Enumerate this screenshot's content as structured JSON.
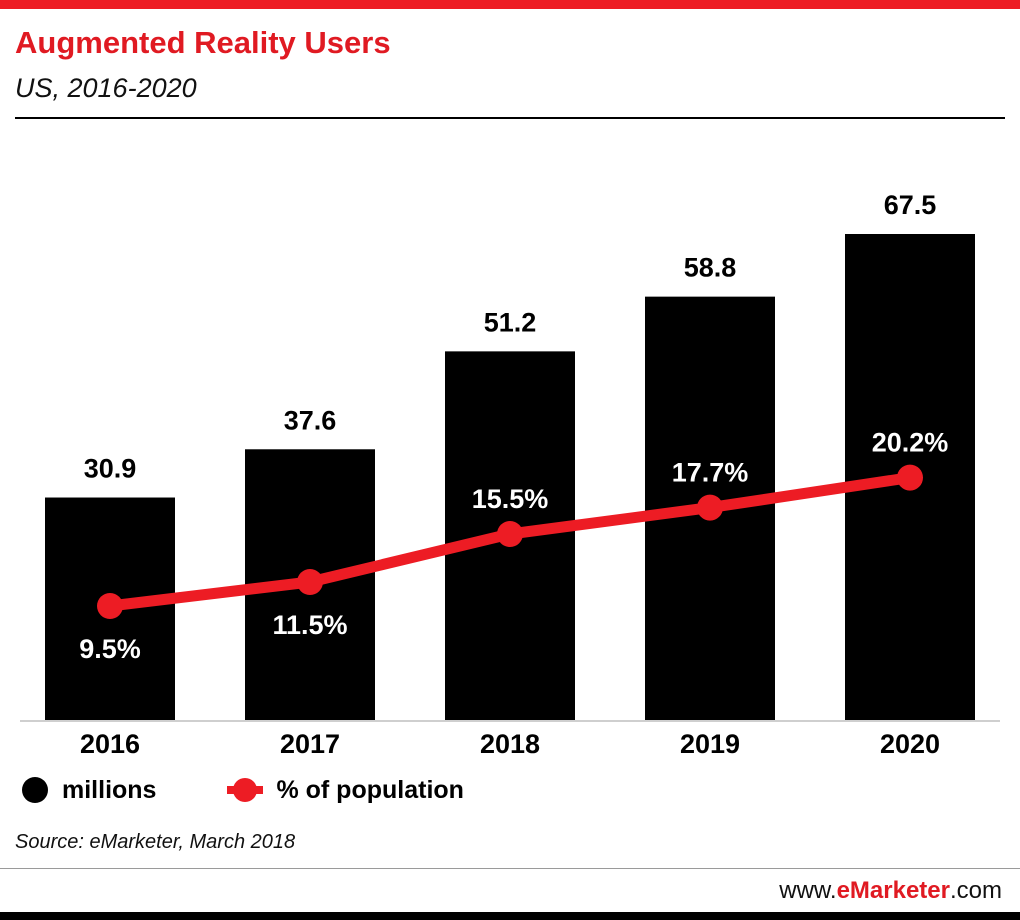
{
  "page": {
    "accent_red": "#ed1c24",
    "bar_black": "#000000"
  },
  "header": {
    "title": "Augmented Reality Users",
    "subtitle": "US, 2016-2020"
  },
  "chart_data": {
    "type": "bar",
    "title": "Augmented Reality Users",
    "subtitle": "US, 2016-2020",
    "categories": [
      "2016",
      "2017",
      "2018",
      "2019",
      "2020"
    ],
    "series": [
      {
        "name": "millions",
        "type": "bar",
        "color": "#000000",
        "values": [
          30.9,
          37.6,
          51.2,
          58.8,
          67.5
        ],
        "labels": [
          "30.9",
          "37.6",
          "51.2",
          "58.8",
          "67.5"
        ]
      },
      {
        "name": "% of population",
        "type": "line",
        "color": "#ed1c24",
        "values": [
          9.5,
          11.5,
          15.5,
          17.7,
          20.2
        ],
        "labels": [
          "9.5%",
          "11.5%",
          "15.5%",
          "17.7%",
          "20.2%"
        ],
        "label_positions": [
          "below",
          "below",
          "above",
          "above",
          "above"
        ]
      }
    ],
    "bar_axis": {
      "min": 0,
      "max": 75
    },
    "line_axis": {
      "min": 0,
      "max": 25
    },
    "grid": false,
    "legend_position": "bottom"
  },
  "legend": {
    "items": [
      {
        "label": "millions",
        "color": "#000000",
        "marker": "circle"
      },
      {
        "label": "% of population",
        "color": "#ed1c24",
        "marker": "line-dot"
      }
    ]
  },
  "source": {
    "text": "Source: eMarketer, March 2018"
  },
  "footer": {
    "prefix": "www.",
    "brand": "eMarketer",
    "suffix": ".com"
  }
}
